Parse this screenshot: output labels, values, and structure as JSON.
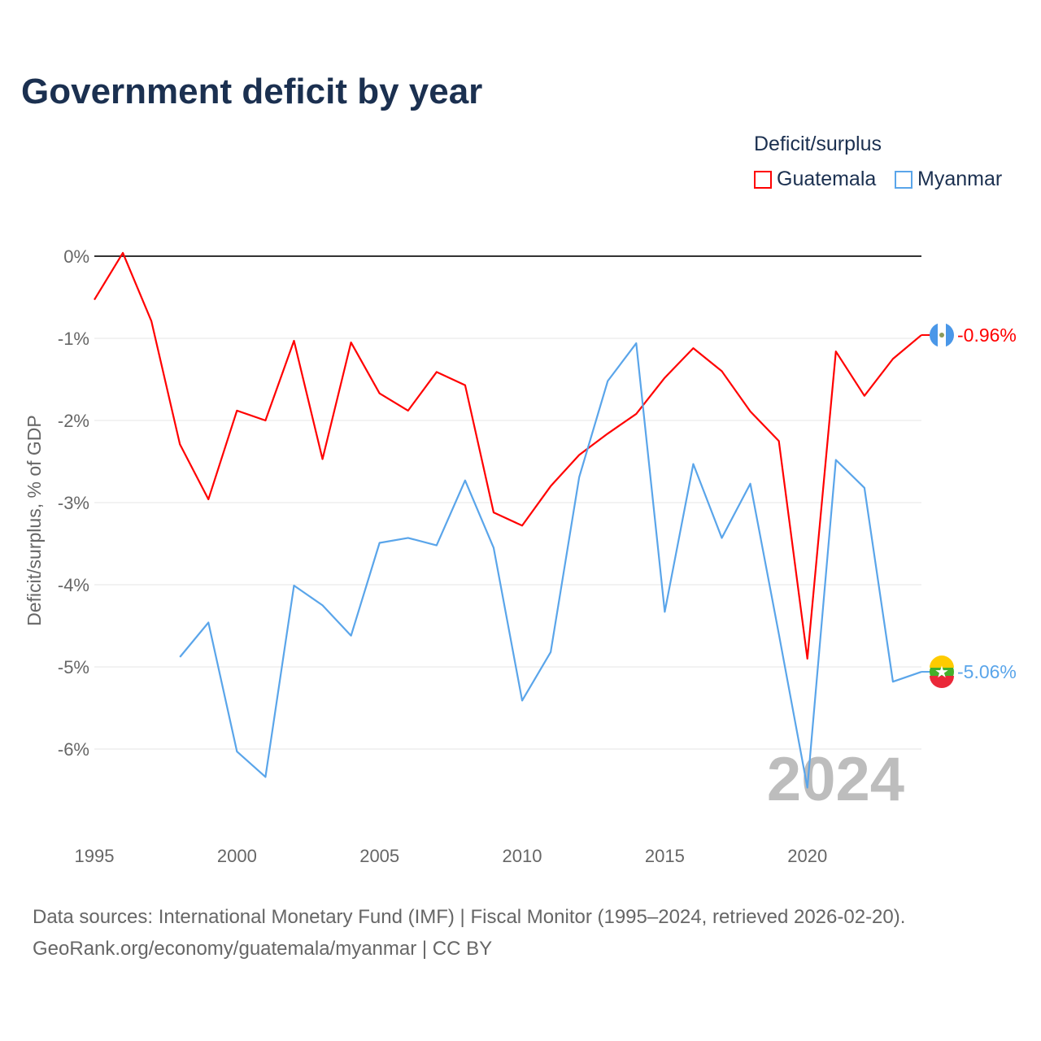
{
  "chart_data": {
    "type": "line",
    "title": "Government deficit by year",
    "ylabel": "Deficit/surplus, % of GDP",
    "xlabel": "",
    "legend_title": "Deficit/surplus",
    "legend_position": "top-right",
    "ylim": [
      -7,
      0.5
    ],
    "xlim": [
      1995,
      2024
    ],
    "y_ticks": [
      0,
      -1,
      -2,
      -3,
      -4,
      -5,
      -6
    ],
    "y_tick_labels": [
      "0%",
      "-1%",
      "-2%",
      "-3%",
      "-4%",
      "-5%",
      "-6%"
    ],
    "x_ticks": [
      1995,
      2000,
      2005,
      2010,
      2015,
      2020
    ],
    "x_tick_labels": [
      "1995",
      "2000",
      "2005",
      "2010",
      "2015",
      "2020"
    ],
    "watermark_year": "2024",
    "series": [
      {
        "name": "Guatemala",
        "color": "#ff0000",
        "end_label": "-0.96%",
        "x": [
          1995,
          1996,
          1997,
          1998,
          1999,
          2000,
          2001,
          2002,
          2003,
          2004,
          2005,
          2006,
          2007,
          2008,
          2009,
          2010,
          2011,
          2012,
          2013,
          2014,
          2015,
          2016,
          2017,
          2018,
          2019,
          2020,
          2021,
          2022,
          2023,
          2024
        ],
        "values": [
          -0.53,
          0.04,
          -0.79,
          -2.29,
          -2.96,
          -1.88,
          -2.0,
          -1.03,
          -2.47,
          -1.05,
          -1.67,
          -1.88,
          -1.41,
          -1.57,
          -3.12,
          -3.28,
          -2.8,
          -2.42,
          -2.16,
          -1.92,
          -1.48,
          -1.12,
          -1.4,
          -1.89,
          -2.25,
          -4.9,
          -1.16,
          -1.7,
          -1.25,
          -0.96
        ]
      },
      {
        "name": "Myanmar",
        "color": "#5aa5ea",
        "end_label": "-5.06%",
        "x": [
          1998,
          1999,
          2000,
          2001,
          2002,
          2003,
          2004,
          2005,
          2006,
          2007,
          2008,
          2009,
          2010,
          2011,
          2012,
          2013,
          2014,
          2015,
          2016,
          2017,
          2018,
          2019,
          2020,
          2021,
          2022,
          2023,
          2024
        ],
        "values": [
          -4.88,
          -4.46,
          -6.03,
          -6.34,
          -4.01,
          -4.25,
          -4.62,
          -3.49,
          -3.43,
          -3.52,
          -2.73,
          -3.55,
          -5.41,
          -4.82,
          -2.69,
          -1.52,
          -1.06,
          -4.33,
          -2.53,
          -3.43,
          -2.77,
          -4.6,
          -6.47,
          -2.48,
          -2.82,
          -5.18,
          -5.06
        ]
      }
    ]
  },
  "footer": {
    "line1": "Data sources: International Monetary Fund (IMF) | Fiscal Monitor (1995–2024, retrieved 2026-02-20).",
    "line2": "GeoRank.org/economy/guatemala/myanmar | CC BY"
  }
}
